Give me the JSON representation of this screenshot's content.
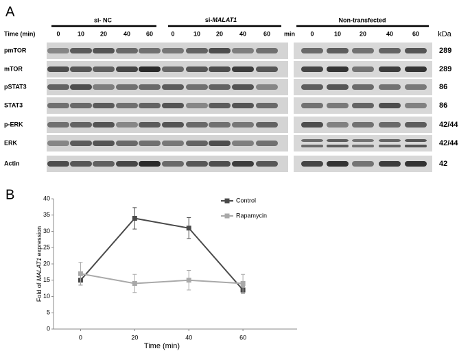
{
  "blot": {
    "panel": "A",
    "time_label": "Time (min)",
    "min_label": "min",
    "kda_label": "kDa",
    "groups": [
      {
        "name": "si- NC",
        "lanes": [
          "0",
          "10",
          "20",
          "40",
          "60"
        ]
      },
      {
        "name_prefix": "si-",
        "name_italic": "MALAT1",
        "lanes": [
          "0",
          "10",
          "20",
          "40",
          "60"
        ]
      },
      {
        "name": "Non-transfected",
        "lanes": [
          "0",
          "10",
          "20",
          "40",
          "60"
        ]
      }
    ],
    "rows": [
      {
        "protein": "pmTOR",
        "kda": "289"
      },
      {
        "protein": "mTOR",
        "kda": "289"
      },
      {
        "protein": "pSTAT3",
        "kda": "86"
      },
      {
        "protein": "STAT3",
        "kda": "86"
      },
      {
        "protein": "p-ERK",
        "kda": "42/44"
      },
      {
        "protein": "ERK",
        "kda": "42/44"
      },
      {
        "protein": "Actin",
        "kda": "42"
      }
    ]
  },
  "chart_data": {
    "type": "line",
    "panel": "B",
    "x_label": "Time (min)",
    "y_label": {
      "prefix": "Fold of ",
      "italic": "MALAT1",
      "suffix": " expression"
    },
    "x": [
      0,
      20,
      40,
      60
    ],
    "xlim": [
      -10,
      80
    ],
    "xticks": [
      0,
      20,
      40,
      60
    ],
    "ylim": [
      0,
      40
    ],
    "yticks": [
      0,
      5,
      10,
      15,
      20,
      25,
      30,
      35,
      40
    ],
    "series": [
      {
        "name": "Control",
        "color": "#4a4a4a",
        "values": [
          15,
          34,
          31,
          12
        ],
        "errors": [
          1.5,
          3.3,
          3.2,
          1
        ]
      },
      {
        "name": "Rapamycin",
        "color": "#a9a9a9",
        "values": [
          17,
          14,
          15,
          14
        ],
        "errors": [
          3.5,
          2.8,
          3,
          2.8
        ]
      }
    ],
    "grid": false
  }
}
